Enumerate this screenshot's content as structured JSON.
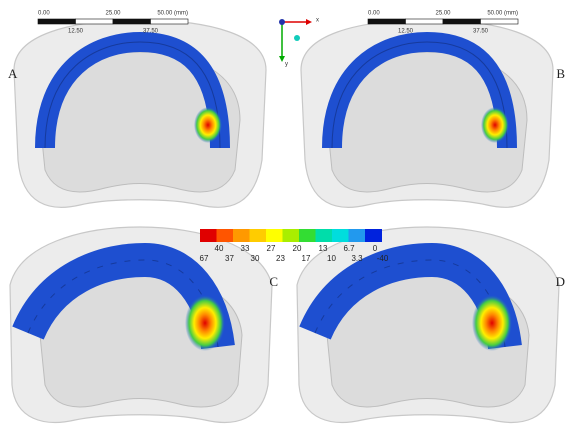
{
  "panels": [
    {
      "label": "A"
    },
    {
      "label": "B"
    },
    {
      "label": "C"
    },
    {
      "label": "D"
    }
  ],
  "scale_bars": [
    {
      "top": [
        "0.00",
        "25.00",
        "50.00 (mm)"
      ],
      "bottom": [
        "12.50",
        "37.50"
      ]
    },
    {
      "top": [
        "0.00",
        "25.00",
        "50.00 (mm)"
      ],
      "bottom": [
        "12.50",
        "37.50"
      ]
    }
  ],
  "triad": {
    "x": "x",
    "y": "y"
  },
  "legend": {
    "top": [
      "40",
      "33",
      "27",
      "20",
      "13",
      "6.7",
      "0"
    ],
    "bottom": [
      "67",
      "37",
      "30",
      "23",
      "17",
      "10",
      "3.3",
      "-40"
    ]
  }
}
